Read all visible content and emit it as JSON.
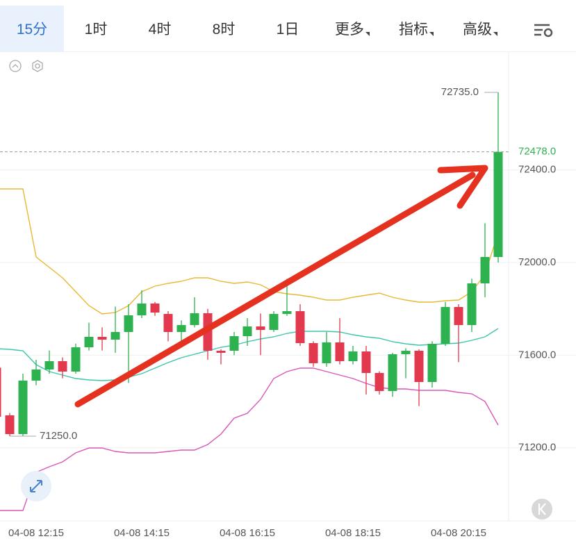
{
  "toolbar": {
    "tabs": [
      "15分",
      "1时",
      "4时",
      "8时",
      "1日",
      "更多",
      "指标",
      "高级"
    ],
    "active": 0
  },
  "chart_data": {
    "type": "candlestick",
    "categories": [
      null,
      null,
      null,
      "04-08 12:15",
      null,
      null,
      null,
      null,
      null,
      null,
      null,
      "04-08 14:15",
      null,
      null,
      null,
      null,
      null,
      null,
      null,
      "04-08 16:15",
      null,
      null,
      null,
      null,
      null,
      null,
      null,
      "04-08 18:15",
      null,
      null,
      null,
      null,
      null,
      null,
      null,
      "04-08 20:15",
      null,
      null,
      null
    ],
    "open": [
      71546,
      71340,
      71259,
      71490,
      71538,
      71574,
      71529,
      71634,
      71679,
      71667,
      71700,
      71772,
      71823,
      71778,
      71700,
      71730,
      71781,
      71619,
      71619,
      71682,
      71724,
      71709,
      71778,
      71790,
      71652,
      71565,
      71655,
      71574,
      71616,
      71523,
      71445,
      71604,
      71619,
      71484,
      71649,
      71808,
      71730,
      71910,
      72024
    ],
    "high": [
      71580,
      71350,
      71520,
      71580,
      71620,
      71590,
      71650,
      71740,
      71720,
      71810,
      71820,
      71880,
      71830,
      71790,
      71750,
      71850,
      71800,
      71625,
      71700,
      71760,
      71780,
      71790,
      71930,
      71820,
      71660,
      71700,
      71760,
      71640,
      71640,
      71530,
      71610,
      71630,
      71625,
      71660,
      71830,
      71820,
      71930,
      72170,
      72735
    ],
    "low": [
      71310,
      71250,
      71250,
      71470,
      71520,
      71500,
      71520,
      71620,
      71620,
      71610,
      71480,
      71760,
      71770,
      71660,
      71640,
      71720,
      71580,
      71560,
      71600,
      71640,
      71600,
      71700,
      71770,
      71640,
      71550,
      71550,
      71560,
      71560,
      71430,
      71430,
      71420,
      71500,
      71380,
      71460,
      71640,
      71570,
      71700,
      71850,
      72000
    ],
    "close": [
      71334,
      71259,
      71490,
      71538,
      71574,
      71529,
      71634,
      71679,
      71667,
      71700,
      71772,
      71823,
      71784,
      71700,
      71730,
      71781,
      71619,
      71610,
      71682,
      71724,
      71709,
      71778,
      71790,
      71652,
      71565,
      71655,
      71574,
      71616,
      71523,
      71445,
      71604,
      71619,
      71484,
      71649,
      71808,
      71730,
      71910,
      72024,
      72478
    ],
    "up_color": "#2eb14f",
    "down_color": "#e2394e",
    "overlays": [
      {
        "color": "#e8b830",
        "values": [
          72318,
          72318,
          72318,
          72024,
          71979,
          71934,
          71874,
          71814,
          71778,
          71784,
          71814,
          71874,
          71898,
          71910,
          71919,
          71934,
          71934,
          71919,
          71910,
          71916,
          71904,
          71874,
          71865,
          71859,
          71850,
          71838,
          71838,
          71850,
          71859,
          71868,
          71850,
          71838,
          71829,
          71829,
          71835,
          71838,
          71874,
          71949,
          72129
        ]
      },
      {
        "color": "#3cc6a8",
        "values": [
          71628,
          71625,
          71619,
          71559,
          71529,
          71514,
          71499,
          71493,
          71490,
          71493,
          71505,
          71520,
          71544,
          71568,
          71589,
          71604,
          71619,
          71634,
          71643,
          71658,
          71670,
          71679,
          71694,
          71703,
          71703,
          71703,
          71700,
          71688,
          71679,
          71673,
          71658,
          71649,
          71643,
          71646,
          71649,
          71652,
          71664,
          71679,
          71715
        ]
      },
      {
        "color": "#d957b8",
        "values": [
          70929,
          70929,
          70929,
          71094,
          71118,
          71139,
          71178,
          71199,
          71199,
          71184,
          71178,
          71178,
          71178,
          71184,
          71190,
          71190,
          71214,
          71259,
          71328,
          71349,
          71409,
          71499,
          71529,
          71544,
          71544,
          71529,
          71514,
          71499,
          71478,
          71460,
          71454,
          71454,
          71448,
          71448,
          71448,
          71439,
          71433,
          71400,
          71298
        ]
      }
    ],
    "ylim": [
      70884,
      72909
    ],
    "yticks": [
      {
        "value": 71200,
        "label": "71200.0"
      },
      {
        "value": 71600,
        "label": "71600.0"
      },
      {
        "value": 72000,
        "label": "72000.0"
      },
      {
        "value": 72400,
        "label": "72400.0"
      }
    ],
    "grid": true,
    "high_label": {
      "value": 72735,
      "label": "72735.0"
    },
    "low_label": {
      "value": 71250,
      "label": "71250.0"
    },
    "last_price": {
      "value": 72478,
      "label": "72478.0",
      "color": "#2eb14f"
    }
  }
}
